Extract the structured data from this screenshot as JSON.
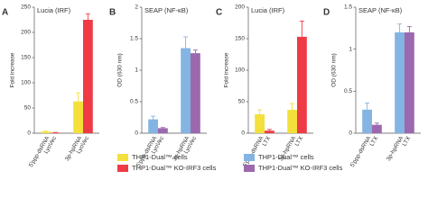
{
  "chart_data": [
    {
      "type": "bar",
      "label": "A",
      "title": "Lucia (IRF)",
      "ylabel": "Fold increase",
      "categories": [
        [
          "5'ppp-dsRNA",
          "LyoVec"
        ],
        [
          "3p-hpRNA",
          "LyoVec"
        ]
      ],
      "series": [
        {
          "name": "THP1-Dual™ cells",
          "color": "#f3e03a",
          "values": [
            3,
            63
          ],
          "errors": [
            1,
            17
          ]
        },
        {
          "name": "THP1-Dual™ KO-IRF3 cells",
          "color": "#ee3b45",
          "values": [
            1,
            225
          ],
          "errors": [
            0.5,
            12
          ]
        }
      ],
      "ylim": [
        0,
        250
      ],
      "yticks": [
        0,
        50,
        100,
        150,
        200,
        250
      ]
    },
    {
      "type": "bar",
      "label": "B",
      "title": "SEAP (NF-κB)",
      "ylabel": "OD (630 nm)",
      "categories": [
        [
          "5'ppp-dsRNA",
          "LyoVec"
        ],
        [
          "3p-hpRNA",
          "LyoVec"
        ]
      ],
      "series": [
        {
          "name": "THP1-Dual™ cells",
          "color": "#84b4e2",
          "values": [
            0.22,
            1.35
          ],
          "errors": [
            0.05,
            0.18
          ]
        },
        {
          "name": "THP1-Dual™ KO-IRF3 cells",
          "color": "#9c68ae",
          "values": [
            0.08,
            1.27
          ],
          "errors": [
            0.01,
            0.05
          ]
        }
      ],
      "ylim": [
        0,
        2
      ],
      "yticks": [
        0,
        0.5,
        1,
        1.5,
        2
      ]
    },
    {
      "type": "bar",
      "label": "C",
      "title": "Lucia (IRF)",
      "ylabel": "Fold increase",
      "categories": [
        [
          "5'ppp-dsRNA",
          "LTX"
        ],
        [
          "3p-hpRNA",
          "LTX"
        ]
      ],
      "series": [
        {
          "name": "THP1-Dual™ cells",
          "color": "#f3e03a",
          "values": [
            30,
            37
          ],
          "errors": [
            7,
            10
          ]
        },
        {
          "name": "THP1-Dual™ KO-IRF3 cells",
          "color": "#ee3b45",
          "values": [
            4,
            153
          ],
          "errors": [
            2,
            25
          ]
        }
      ],
      "ylim": [
        0,
        200
      ],
      "yticks": [
        0,
        50,
        100,
        150,
        200
      ]
    },
    {
      "type": "bar",
      "label": "D",
      "title": "SEAP (NF-κB)",
      "ylabel": "OD (630 nm)",
      "categories": [
        [
          "5'ppp-dsRNA",
          "LTX"
        ],
        [
          "3p-hpRNA",
          "LTX"
        ]
      ],
      "series": [
        {
          "name": "THP1-Dual™ cells",
          "color": "#84b4e2",
          "values": [
            0.28,
            1.2
          ],
          "errors": [
            0.08,
            0.1
          ]
        },
        {
          "name": "THP1-Dual™ KO-IRF3 cells",
          "color": "#9c68ae",
          "values": [
            0.1,
            1.2
          ],
          "errors": [
            0.02,
            0.07
          ]
        }
      ],
      "ylim": [
        0,
        1.5
      ],
      "yticks": [
        0,
        0.5,
        1,
        1.5
      ]
    }
  ]
}
